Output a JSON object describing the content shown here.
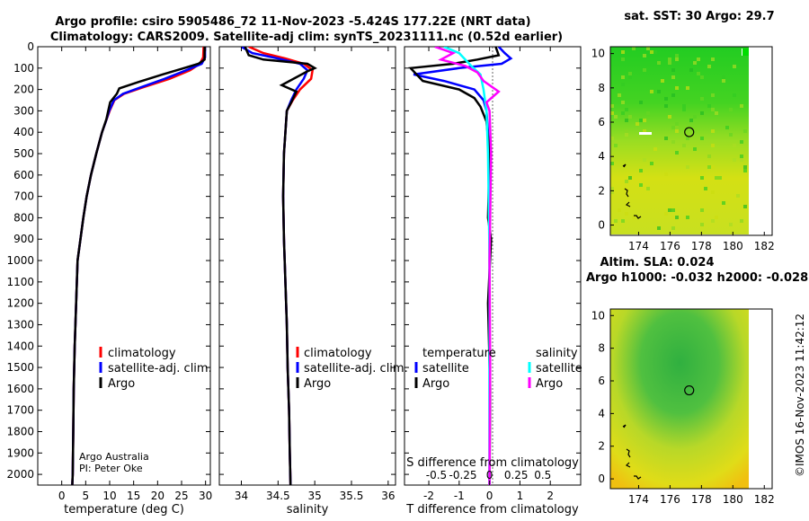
{
  "figure": {
    "title_line1": "Argo profile: csiro 5905486_72 11-Nov-2023 -5.424S 177.22E (NRT data)",
    "title_line2": "Climatology: CARS2009. Satellite-adj clim: synTS_20231111.nc (0.52d earlier)",
    "credit": "Argo Australia",
    "pi": "PI: Peter Oke",
    "timestamp": "©IMOS 16-Nov-2023 11:42:12"
  },
  "chart_data": [
    {
      "type": "line",
      "id": "temperature",
      "xlabel": "temperature (deg C)",
      "ylabel": "",
      "xlim": [
        -5,
        31
      ],
      "ylim": [
        2050,
        0
      ],
      "xticks": [
        "0",
        "5",
        "10",
        "15",
        "20",
        "25",
        "30"
      ],
      "xtick_values": [
        0,
        5,
        10,
        15,
        20,
        25,
        30
      ],
      "yticks": [
        "0",
        "100",
        "200",
        "300",
        "400",
        "500",
        "600",
        "700",
        "800",
        "900",
        "1000",
        "1100",
        "1200",
        "1300",
        "1400",
        "1500",
        "1600",
        "1700",
        "1800",
        "1900",
        "2000"
      ],
      "ytick_values": [
        0,
        100,
        200,
        300,
        400,
        500,
        600,
        700,
        800,
        900,
        1000,
        1100,
        1200,
        1300,
        1400,
        1500,
        1600,
        1700,
        1800,
        1900,
        2000
      ],
      "legend": [
        "climatology",
        "satellite-adj. clim.",
        "Argo"
      ],
      "series": [
        {
          "name": "climatology",
          "color": "#ff0000",
          "x": [
            29.6,
            29.5,
            28.8,
            26.8,
            22.5,
            17.0,
            13.0,
            11.0,
            10.0,
            9.2,
            8.4,
            7.2,
            6.1,
            5.2,
            4.5,
            3.9,
            3.3,
            3.0,
            2.7,
            2.5,
            2.4,
            2.3,
            2.2
          ],
          "y": [
            0,
            50,
            80,
            110,
            150,
            190,
            220,
            250,
            300,
            350,
            400,
            500,
            600,
            700,
            800,
            900,
            1000,
            1200,
            1400,
            1600,
            1800,
            2000,
            2050
          ]
        },
        {
          "name": "satellite-adj. clim.",
          "color": "#0000ff",
          "x": [
            29.9,
            29.9,
            29.2,
            26.0,
            21.5,
            16.5,
            12.8,
            10.9,
            9.9,
            9.2,
            8.4,
            7.2,
            6.1,
            5.2,
            4.5,
            3.9,
            3.3,
            3.0,
            2.7,
            2.5,
            2.4,
            2.3,
            2.2
          ],
          "y": [
            0,
            50,
            80,
            110,
            150,
            190,
            220,
            250,
            300,
            350,
            400,
            500,
            600,
            700,
            800,
            900,
            1000,
            1200,
            1400,
            1600,
            1800,
            2000,
            2050
          ]
        },
        {
          "name": "Argo",
          "color": "#000000",
          "x": [
            29.8,
            29.8,
            28.5,
            25.5,
            21.0,
            16.0,
            12.0,
            11.5,
            10.1,
            9.3,
            8.4,
            7.2,
            6.1,
            5.2,
            4.5,
            3.9,
            3.3,
            3.0,
            2.7,
            2.5,
            2.4,
            2.3,
            2.2
          ],
          "y": [
            0,
            60,
            80,
            100,
            130,
            165,
            195,
            220,
            260,
            340,
            400,
            500,
            600,
            700,
            800,
            900,
            1000,
            1200,
            1400,
            1600,
            1800,
            2000,
            2050
          ]
        }
      ]
    },
    {
      "type": "line",
      "id": "salinity",
      "xlabel": "salinity",
      "xlim": [
        33.7,
        36.1
      ],
      "ylim": [
        2050,
        0
      ],
      "xticks": [
        "34",
        "34.5",
        "35",
        "35.5",
        "36"
      ],
      "xtick_values": [
        34,
        34.5,
        35,
        35.5,
        36
      ],
      "legend": [
        "climatology",
        "satellite-adj. clim.",
        "Argo"
      ],
      "series": [
        {
          "name": "climatology",
          "color": "#ff0000",
          "x": [
            34.1,
            34.3,
            34.6,
            34.85,
            34.97,
            34.95,
            34.8,
            34.7,
            34.62,
            34.6,
            34.58,
            34.57,
            34.58,
            34.6,
            34.62,
            34.63,
            34.65,
            34.66,
            34.67
          ],
          "y": [
            0,
            30,
            55,
            80,
            110,
            150,
            200,
            250,
            300,
            400,
            500,
            700,
            900,
            1100,
            1300,
            1500,
            1700,
            1900,
            2050
          ]
        },
        {
          "name": "satellite-adj. clim.",
          "color": "#0000ff",
          "x": [
            34.0,
            34.15,
            34.5,
            34.8,
            34.9,
            34.85,
            34.75,
            34.68,
            34.62,
            34.6,
            34.58,
            34.57,
            34.58,
            34.6,
            34.62,
            34.63,
            34.65,
            34.66,
            34.67
          ],
          "y": [
            0,
            30,
            55,
            80,
            110,
            150,
            200,
            250,
            300,
            400,
            500,
            700,
            900,
            1100,
            1300,
            1500,
            1700,
            1900,
            2050
          ]
        },
        {
          "name": "Argo",
          "color": "#000000",
          "x": [
            34.05,
            34.1,
            34.3,
            34.9,
            35.0,
            34.9,
            34.55,
            34.75,
            34.68,
            34.62,
            34.6,
            34.58,
            34.57,
            34.58,
            34.6,
            34.62,
            34.63,
            34.65,
            34.66,
            34.67
          ],
          "y": [
            0,
            40,
            60,
            80,
            100,
            115,
            180,
            210,
            260,
            300,
            400,
            500,
            700,
            900,
            1100,
            1300,
            1500,
            1700,
            1900,
            2050
          ]
        }
      ]
    },
    {
      "type": "line",
      "id": "difference",
      "xlabel": "T difference from climatology",
      "xlabel_top": "S difference from climatology",
      "xlim": [
        -2.8,
        3.0
      ],
      "ylim": [
        2050,
        0
      ],
      "xticks": [
        "-2",
        "-1",
        "0",
        "1",
        "2"
      ],
      "xtick_values": [
        -2,
        -1,
        0,
        1,
        2
      ],
      "s_xticks": [
        "-0.5",
        "-0.25",
        "0",
        "0.25",
        "0.5"
      ],
      "s_xtick_values": [
        -0.5,
        -0.25,
        0,
        0.25,
        0.5
      ],
      "legend_temperature_title": "temperature",
      "legend_salinity_title": "salinity",
      "legend_temperature": [
        "satellite",
        "Argo"
      ],
      "legend_salinity": [
        "satellite",
        "Argo"
      ],
      "series": [
        {
          "name": "temperature satellite",
          "color": "#0000ff",
          "x": [
            0.3,
            0.5,
            0.7,
            0.4,
            -1.0,
            -2.5,
            -1.5,
            -0.5,
            -0.2,
            -0.1,
            0,
            0,
            0,
            0
          ],
          "y": [
            0,
            30,
            55,
            80,
            100,
            130,
            160,
            200,
            250,
            300,
            500,
            1000,
            1500,
            2050
          ]
        },
        {
          "name": "temperature Argo",
          "color": "#000000",
          "x": [
            0.2,
            0.3,
            -0.4,
            -1.2,
            -2.6,
            -2.2,
            -1.0,
            -0.5,
            -0.3,
            -0.1,
            0,
            -0.05,
            0.05,
            -0.05,
            0.02,
            0
          ],
          "y": [
            0,
            40,
            60,
            80,
            100,
            160,
            200,
            240,
            280,
            350,
            500,
            800,
            900,
            1200,
            1600,
            2050
          ]
        },
        {
          "name": "salinity satellite",
          "color": "#00ffff",
          "x": [
            -1.5,
            -1.0,
            -0.8,
            -0.6,
            -0.3,
            -0.2,
            -0.1,
            -0.05,
            0,
            0
          ],
          "y": [
            0,
            30,
            60,
            90,
            130,
            200,
            300,
            500,
            1000,
            2050
          ]
        },
        {
          "name": "salinity Argo",
          "color": "#ff00ff",
          "x": [
            -1.8,
            -1.2,
            -1.6,
            -0.8,
            -0.4,
            -0.2,
            0.3,
            -0.1,
            0,
            0.05,
            0,
            0.02,
            0
          ],
          "y": [
            0,
            30,
            60,
            90,
            120,
            160,
            210,
            260,
            300,
            500,
            1000,
            1500,
            2050
          ]
        }
      ]
    },
    {
      "type": "heatmap",
      "id": "sst",
      "title": "sat. SST: 30 Argo: 29.7",
      "xlim": [
        172.2,
        182.5
      ],
      "ylim": [
        -0.6,
        10.4
      ],
      "xticks": [
        "174",
        "176",
        "178",
        "180",
        "182"
      ],
      "xtick_values": [
        174,
        176,
        178,
        180,
        182
      ],
      "yticks": [
        "0",
        "2",
        "4",
        "6",
        "8",
        "10"
      ],
      "ytick_values": [
        0,
        2,
        4,
        6,
        8,
        10
      ],
      "marker": {
        "lon": 177.22,
        "lat": 5.42
      }
    },
    {
      "type": "heatmap",
      "id": "sla",
      "title": "Altim. SLA: 0.024",
      "subtitle": "Argo h1000: -0.032 h2000: -0.028",
      "xlim": [
        172.2,
        182.5
      ],
      "ylim": [
        -0.6,
        10.4
      ],
      "xticks": [
        "174",
        "176",
        "178",
        "180",
        "182"
      ],
      "xtick_values": [
        174,
        176,
        178,
        180,
        182
      ],
      "yticks": [
        "0",
        "2",
        "4",
        "6",
        "8",
        "10"
      ],
      "ytick_values": [
        0,
        2,
        4,
        6,
        8,
        10
      ],
      "marker": {
        "lon": 177.22,
        "lat": 5.42
      }
    }
  ]
}
